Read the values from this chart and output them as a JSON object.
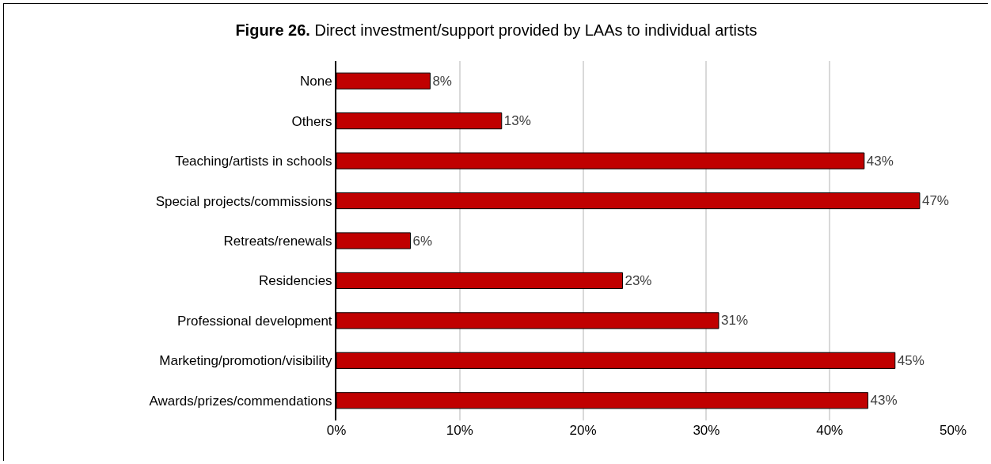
{
  "chart_data": {
    "type": "bar",
    "orientation": "horizontal",
    "title": "Figure 26. Direct investment/support provided by LAAs to individual artists",
    "categories": [
      "None",
      "Others",
      "Teaching/artists in schools",
      "Special projects/commissions",
      "Retreats/renewals",
      "Residencies",
      "Professional development",
      "Marketing/promotion/visibility",
      "Awards/prizes/commendations"
    ],
    "values": [
      7.6,
      13.4,
      42.8,
      47.3,
      6.0,
      23.2,
      31.0,
      45.3,
      43.1
    ],
    "value_labels": [
      "8%",
      "13%",
      "43%",
      "47%",
      "6%",
      "23%",
      "31%",
      "45%",
      "43%"
    ],
    "color": "#c00000",
    "xlim": [
      0,
      50
    ],
    "xticks": [
      {
        "value": 0,
        "label": "0%"
      },
      {
        "value": 10,
        "label": "10%"
      },
      {
        "value": 20,
        "label": "20%"
      },
      {
        "value": 30,
        "label": "30%"
      },
      {
        "value": 40,
        "label": "40%"
      },
      {
        "value": 50,
        "label": "50%"
      }
    ],
    "grid": "x"
  }
}
